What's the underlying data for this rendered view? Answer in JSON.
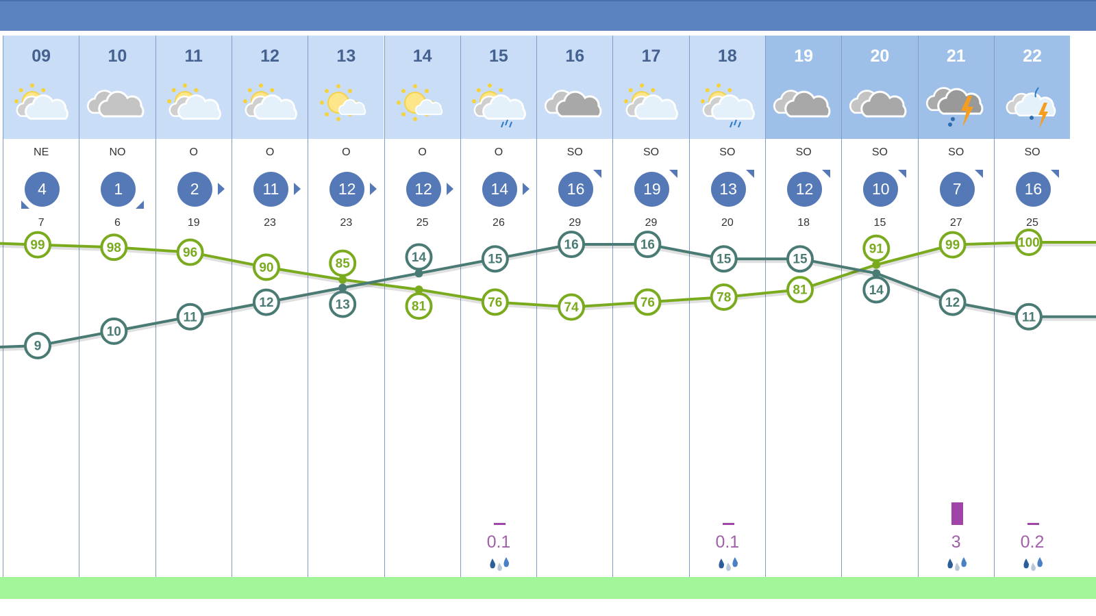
{
  "colors": {
    "header": "#5a82be",
    "temperature": "#4a7a74",
    "humidity": "#7aaa1e",
    "precip": "#a045a8",
    "band": "#a3f59a"
  },
  "days": [
    {
      "day": "09",
      "sky": "partly-cloudy",
      "wind_dir": "NE",
      "wind": "4",
      "gust": "7",
      "temp": 9,
      "humidity": 99,
      "precip": null
    },
    {
      "day": "10",
      "sky": "cloudy",
      "wind_dir": "NO",
      "wind": "1",
      "gust": "6",
      "temp": 10,
      "humidity": 98,
      "precip": null
    },
    {
      "day": "11",
      "sky": "partly-cloudy",
      "wind_dir": "O",
      "wind": "2",
      "gust": "19",
      "temp": 11,
      "humidity": 96,
      "precip": null
    },
    {
      "day": "12",
      "sky": "partly-cloudy",
      "wind_dir": "O",
      "wind": "11",
      "gust": "23",
      "temp": 12,
      "humidity": 90,
      "precip": null
    },
    {
      "day": "13",
      "sky": "sunny-intervals",
      "wind_dir": "O",
      "wind": "12",
      "gust": "23",
      "temp": 13,
      "humidity": 85,
      "precip": null
    },
    {
      "day": "14",
      "sky": "sunny-intervals",
      "wind_dir": "O",
      "wind": "12",
      "gust": "25",
      "temp": 14,
      "humidity": 81,
      "precip": null
    },
    {
      "day": "15",
      "sky": "partly-cloudy-rain",
      "wind_dir": "O",
      "wind": "14",
      "gust": "26",
      "temp": 15,
      "humidity": 76,
      "precip": "0.1"
    },
    {
      "day": "16",
      "sky": "overcast",
      "wind_dir": "SO",
      "wind": "16",
      "gust": "29",
      "temp": 16,
      "humidity": 74,
      "precip": null
    },
    {
      "day": "17",
      "sky": "partly-cloudy",
      "wind_dir": "SO",
      "wind": "19",
      "gust": "29",
      "temp": 16,
      "humidity": 76,
      "precip": null
    },
    {
      "day": "18",
      "sky": "partly-cloudy-rain",
      "wind_dir": "SO",
      "wind": "13",
      "gust": "20",
      "temp": 15,
      "humidity": 78,
      "precip": "0.1"
    },
    {
      "day": "19",
      "sky": "overcast",
      "wind_dir": "SO",
      "wind": "12",
      "gust": "18",
      "temp": 15,
      "humidity": 81,
      "precip": null,
      "highlight": true
    },
    {
      "day": "20",
      "sky": "overcast",
      "wind_dir": "SO",
      "wind": "10",
      "gust": "15",
      "temp": 14,
      "humidity": 91,
      "precip": null,
      "highlight": true
    },
    {
      "day": "21",
      "sky": "storm",
      "wind_dir": "SO",
      "wind": "7",
      "gust": "27",
      "temp": 12,
      "humidity": 99,
      "precip": "3",
      "highlight": true
    },
    {
      "day": "22",
      "sky": "storm-light",
      "wind_dir": "SO",
      "wind": "16",
      "gust": "25",
      "temp": 11,
      "humidity": 100,
      "precip": "0.2",
      "highlight": true
    }
  ]
}
